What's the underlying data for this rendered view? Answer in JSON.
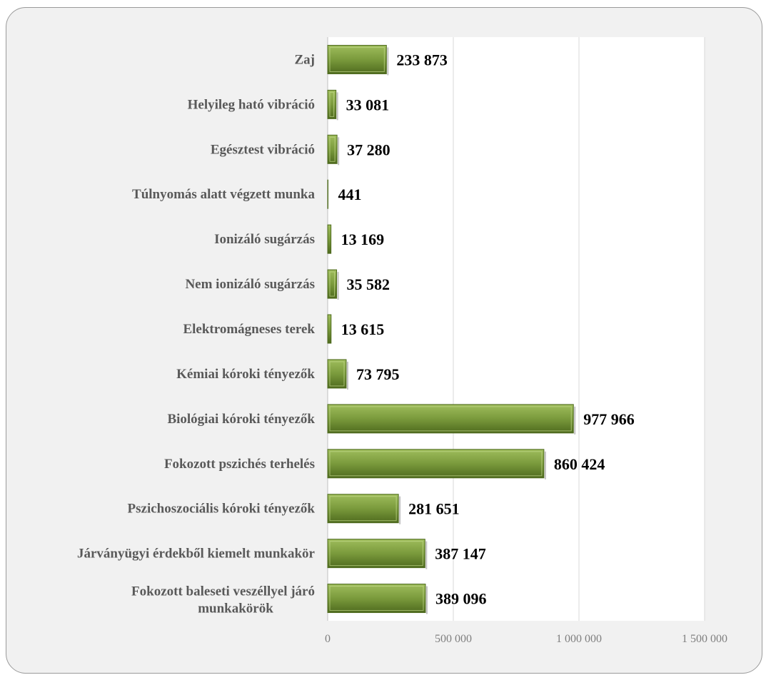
{
  "chart_data": {
    "type": "bar",
    "orientation": "horizontal",
    "title": "",
    "xlabel": "",
    "ylabel": "",
    "xlim": [
      0,
      1500000
    ],
    "grid": true,
    "legend": "none",
    "colors": {
      "bar": "#7a9a3c",
      "bar_light": "#9fbd5c",
      "bar_dark": "#4e6a1e",
      "plot_background": "#ffffff",
      "frame_background": "#f1f1f1",
      "gridline": "#d9d9d9"
    },
    "categories": [
      "Zaj",
      "Helyileg ható vibráció",
      "Egésztest vibráció",
      "Túlnyomás alatt végzett munka",
      "Ionizáló sugárzás",
      "Nem ionizáló sugárzás",
      "Elektromágneses terek",
      "Kémiai kóroki tényezők",
      "Biológiai kóroki tényezők",
      "Fokozott pszichés terhelés",
      "Pszichoszociális kóroki tényezők",
      "Járványügyi érdekből kiemelt munkakör",
      "Fokozott baleseti veszéllyel járó munkakörök"
    ],
    "values": [
      233873,
      33081,
      37280,
      441,
      13169,
      35582,
      13615,
      73795,
      977966,
      860424,
      281651,
      387147,
      389096
    ],
    "value_labels": [
      "233 873",
      "33 081",
      "37 280",
      "441",
      "13 169",
      "35 582",
      "13 615",
      "73 795",
      "977 966",
      "860 424",
      "281 651",
      "387 147",
      "389 096"
    ],
    "x_ticks": [
      0,
      500000,
      1000000,
      1500000
    ],
    "x_tick_labels": [
      "0",
      "500 000",
      "1 000 000",
      "1 500 000"
    ]
  }
}
